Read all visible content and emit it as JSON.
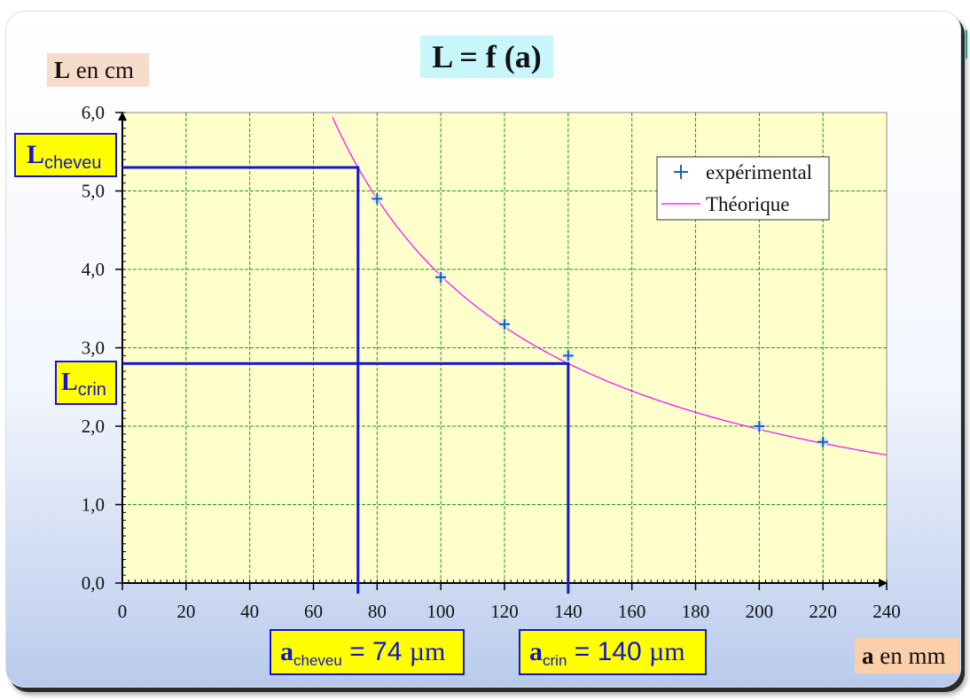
{
  "chart_data": {
    "type": "scatter",
    "title": "L = f (a)",
    "xlabel": {
      "var": "a",
      "unit": "en mm"
    },
    "ylabel": {
      "var": "L",
      "unit": "en cm"
    },
    "xlim": [
      0,
      240
    ],
    "ylim": [
      0,
      6
    ],
    "x_ticks": [
      "0",
      "20",
      "40",
      "60",
      "80",
      "100",
      "120",
      "140",
      "160",
      "180",
      "200",
      "220",
      "240"
    ],
    "y_ticks": [
      "0,0",
      "1,0",
      "2,0",
      "3,0",
      "4,0",
      "5,0",
      "6,0"
    ],
    "grid": true,
    "legend_position": "top-right",
    "series": [
      {
        "name": "expérimental",
        "kind": "points",
        "color": "#1a5fb4",
        "x": [
          80,
          100,
          120,
          140,
          200,
          220
        ],
        "y": [
          4.9,
          3.9,
          3.3,
          2.9,
          2.0,
          1.8
        ]
      },
      {
        "name": "Théorique",
        "kind": "curve",
        "color": "#ff00ff",
        "function": "L = 392 / a",
        "k": 392,
        "x_range": [
          65,
          240
        ]
      }
    ],
    "guides": [
      {
        "x": 74,
        "y": 5.3,
        "color": "#1414d2"
      },
      {
        "x": 140,
        "y": 2.8,
        "color": "#1414d2"
      }
    ]
  },
  "annotations": {
    "l_cheveu": {
      "main": "L",
      "sub": "cheveu"
    },
    "l_crin": {
      "main": "L",
      "sub": "crin"
    },
    "a_cheveu": {
      "main": "a",
      "sub": "cheveu",
      "value": " = 74 ",
      "unit": "µm"
    },
    "a_crin": {
      "main": "a",
      "sub": "crin",
      "value": " = 140 ",
      "unit": "µm"
    }
  },
  "colors": {
    "plot_background": "#ffffcc",
    "grid": "#1a9a1a",
    "accent": "#1414d2",
    "label_box": "#ffff00"
  }
}
